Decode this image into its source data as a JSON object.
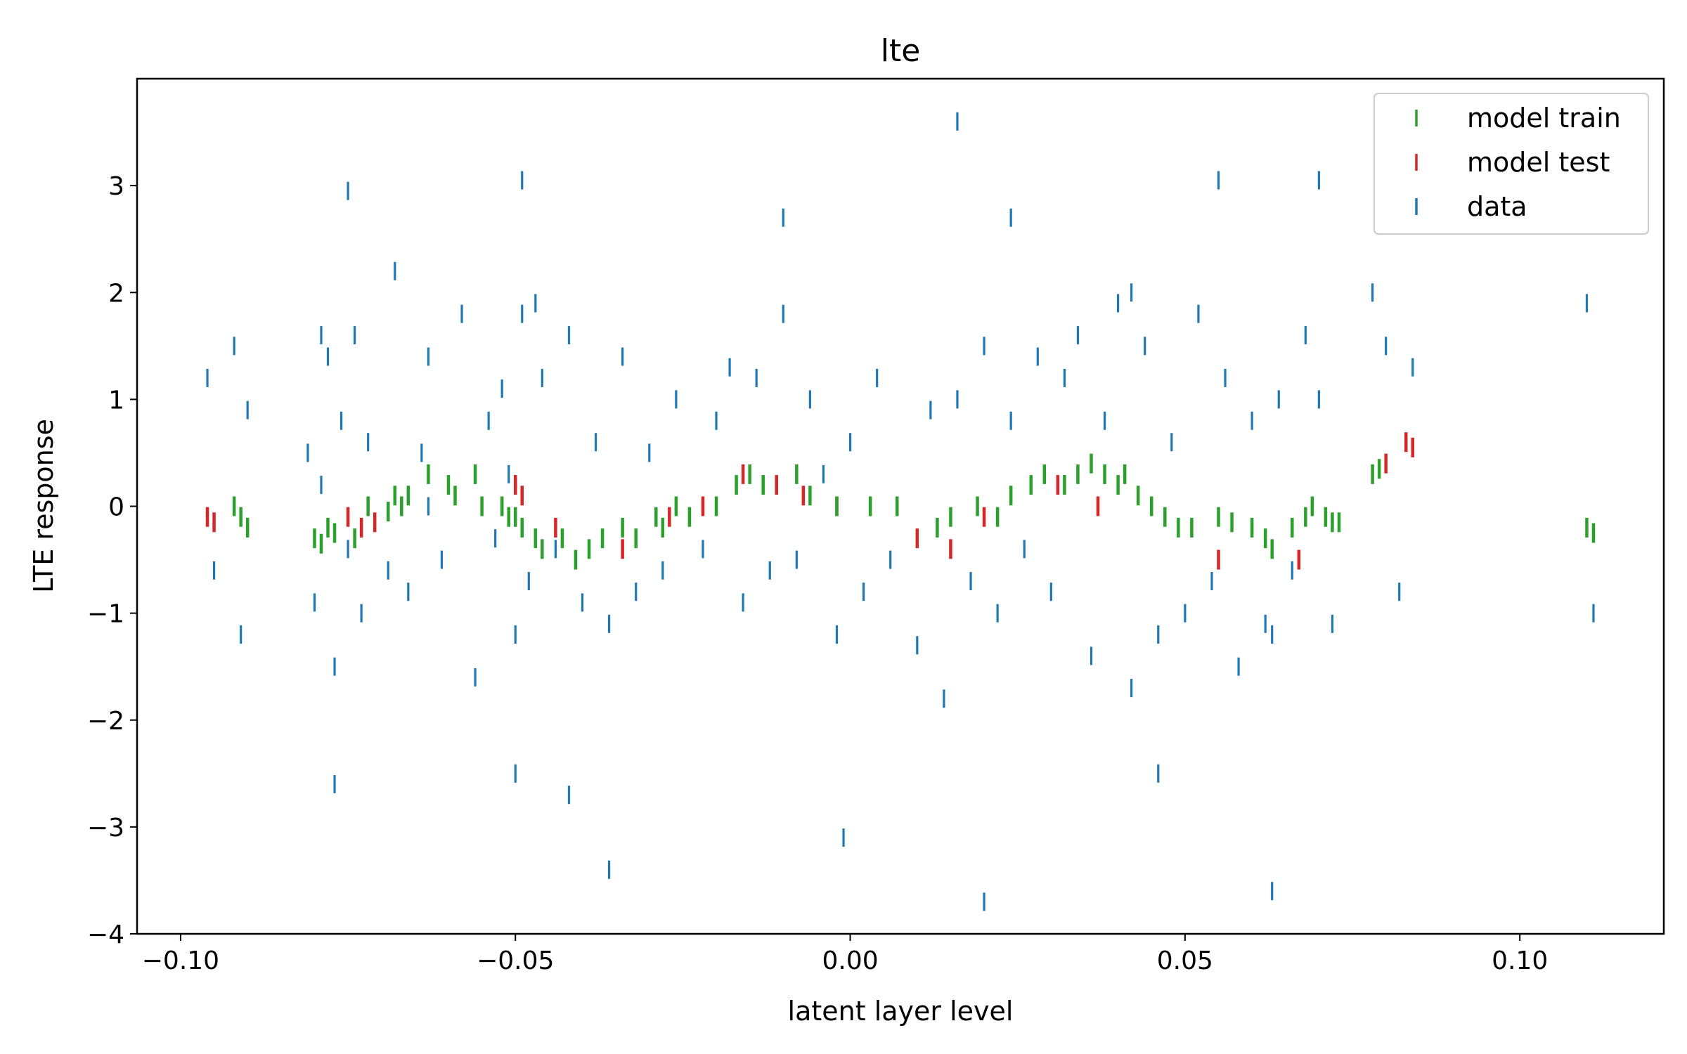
{
  "chart_data": {
    "type": "scatter",
    "title": "lte",
    "xlabel": "latent layer level",
    "ylabel": "LTE response",
    "xlim": [
      -0.1065,
      0.1215
    ],
    "ylim": [
      -4.0,
      4.0
    ],
    "xticks": [
      -0.1,
      -0.05,
      0.0,
      0.05,
      0.1
    ],
    "xtick_labels": [
      "−0.10",
      "−0.05",
      "0.00",
      "0.05",
      "0.10"
    ],
    "yticks": [
      -4,
      -3,
      -2,
      -1,
      0,
      1,
      2,
      3
    ],
    "ytick_labels": [
      "−4",
      "−3",
      "−2",
      "−1",
      "0",
      "1",
      "2",
      "3"
    ],
    "marker": "vertical-line",
    "grid": false,
    "legend_position": "top-right",
    "series": [
      {
        "name": "model train",
        "color": "#2ca02c",
        "x": [
          -0.092,
          -0.091,
          -0.09,
          -0.08,
          -0.079,
          -0.078,
          -0.077,
          -0.074,
          -0.072,
          -0.069,
          -0.068,
          -0.067,
          -0.066,
          -0.063,
          -0.06,
          -0.059,
          -0.056,
          -0.055,
          -0.052,
          -0.051,
          -0.05,
          -0.049,
          -0.047,
          -0.046,
          -0.043,
          -0.041,
          -0.039,
          -0.037,
          -0.034,
          -0.032,
          -0.029,
          -0.028,
          -0.026,
          -0.024,
          -0.02,
          -0.017,
          -0.015,
          -0.013,
          -0.008,
          -0.006,
          -0.002,
          0.003,
          0.007,
          0.013,
          0.015,
          0.019,
          0.022,
          0.024,
          0.027,
          0.029,
          0.032,
          0.034,
          0.036,
          0.038,
          0.04,
          0.041,
          0.043,
          0.045,
          0.047,
          0.049,
          0.051,
          0.055,
          0.057,
          0.06,
          0.062,
          0.063,
          0.066,
          0.068,
          0.069,
          0.071,
          0.072,
          0.073,
          0.078,
          0.079,
          0.11,
          0.111
        ],
        "y": [
          0.0,
          -0.1,
          -0.2,
          -0.3,
          -0.35,
          -0.2,
          -0.25,
          -0.3,
          0.0,
          -0.05,
          0.1,
          0.0,
          0.1,
          0.3,
          0.2,
          0.1,
          0.3,
          0.0,
          0.0,
          -0.1,
          -0.1,
          -0.2,
          -0.3,
          -0.4,
          -0.3,
          -0.5,
          -0.4,
          -0.3,
          -0.2,
          -0.3,
          -0.1,
          -0.2,
          0.0,
          -0.1,
          0.0,
          0.2,
          0.3,
          0.2,
          0.3,
          0.1,
          0.0,
          0.0,
          0.0,
          -0.2,
          -0.1,
          0.0,
          -0.1,
          0.1,
          0.2,
          0.3,
          0.2,
          0.3,
          0.4,
          0.3,
          0.2,
          0.3,
          0.1,
          0.0,
          -0.1,
          -0.2,
          -0.2,
          -0.1,
          -0.15,
          -0.2,
          -0.3,
          -0.4,
          -0.2,
          -0.1,
          0.0,
          -0.1,
          -0.15,
          -0.15,
          0.3,
          0.35,
          -0.2,
          -0.25
        ]
      },
      {
        "name": "model test",
        "color": "#d62728",
        "x": [
          -0.096,
          -0.095,
          -0.075,
          -0.073,
          -0.071,
          -0.05,
          -0.049,
          -0.044,
          -0.034,
          -0.027,
          -0.022,
          -0.016,
          -0.011,
          -0.007,
          -0.002,
          0.01,
          0.015,
          0.02,
          0.031,
          0.037,
          0.055,
          0.067,
          0.08,
          0.083,
          0.084
        ],
        "y": [
          -0.1,
          -0.15,
          -0.1,
          -0.2,
          -0.15,
          0.2,
          0.1,
          -0.2,
          -0.4,
          -0.1,
          0.0,
          0.3,
          0.2,
          0.1,
          0.0,
          -0.3,
          -0.4,
          -0.1,
          0.2,
          0.0,
          -0.5,
          -0.5,
          0.4,
          0.6,
          0.55
        ]
      },
      {
        "name": "data",
        "color": "#1f77b4",
        "x": [
          -0.096,
          -0.095,
          -0.092,
          -0.091,
          -0.09,
          -0.081,
          -0.08,
          -0.079,
          -0.078,
          -0.077,
          -0.076,
          -0.075,
          -0.074,
          -0.073,
          -0.072,
          -0.069,
          -0.068,
          -0.066,
          -0.063,
          -0.061,
          -0.058,
          -0.056,
          -0.054,
          -0.053,
          -0.052,
          -0.051,
          -0.05,
          -0.049,
          -0.048,
          -0.046,
          -0.044,
          -0.042,
          -0.04,
          -0.038,
          -0.036,
          -0.034,
          -0.032,
          -0.03,
          -0.028,
          -0.026,
          -0.022,
          -0.02,
          -0.018,
          -0.016,
          -0.014,
          -0.012,
          -0.01,
          -0.008,
          -0.006,
          -0.004,
          -0.002,
          0.0,
          0.002,
          0.004,
          0.006,
          0.01,
          0.012,
          0.014,
          0.016,
          0.018,
          0.02,
          0.022,
          0.024,
          0.026,
          0.028,
          0.03,
          0.032,
          0.034,
          0.036,
          0.038,
          0.04,
          0.042,
          0.044,
          0.046,
          0.048,
          0.05,
          0.052,
          0.054,
          0.056,
          0.058,
          0.06,
          0.062,
          0.064,
          0.066,
          0.068,
          0.07,
          0.072,
          0.078,
          0.08,
          0.082,
          0.084,
          0.11,
          0.111,
          -0.075,
          -0.05,
          -0.036,
          -0.049,
          0.016,
          0.02,
          -0.001,
          0.063,
          0.055,
          0.07,
          -0.079,
          -0.077,
          -0.063,
          -0.064,
          -0.042,
          -0.047,
          -0.01,
          0.024,
          0.042,
          0.046,
          0.063
        ],
        "y": [
          1.2,
          -0.6,
          1.5,
          -1.2,
          0.9,
          0.5,
          -0.9,
          0.2,
          1.4,
          -1.5,
          0.8,
          -0.4,
          1.6,
          -1.0,
          0.6,
          -0.6,
          2.2,
          -0.8,
          1.4,
          -0.5,
          1.8,
          -1.6,
          0.8,
          -0.3,
          1.1,
          0.3,
          -1.2,
          1.8,
          -0.7,
          1.2,
          -0.4,
          1.6,
          -0.9,
          0.6,
          -1.1,
          1.4,
          -0.8,
          0.5,
          -0.6,
          1.0,
          -0.4,
          0.8,
          1.3,
          -0.9,
          1.2,
          -0.6,
          1.8,
          -0.5,
          1.0,
          0.3,
          -1.2,
          0.6,
          -0.8,
          1.2,
          -0.5,
          -1.3,
          0.9,
          -1.8,
          1.0,
          -0.7,
          1.5,
          -1.0,
          0.8,
          -0.4,
          1.4,
          -0.8,
          1.2,
          1.6,
          -1.4,
          0.8,
          1.9,
          -1.7,
          1.5,
          -1.2,
          0.6,
          -1.0,
          1.8,
          -0.7,
          1.2,
          -1.5,
          0.8,
          -1.1,
          1.0,
          -0.6,
          1.6,
          1.0,
          -1.1,
          2.0,
          1.5,
          -0.8,
          1.3,
          1.9,
          -1.0,
          2.95,
          -2.5,
          -3.4,
          3.05,
          3.6,
          -3.7,
          -3.1,
          -3.6,
          3.05,
          3.05,
          1.6,
          -2.6,
          0.0,
          0.5,
          -2.7,
          1.9,
          2.7,
          2.7,
          2.0,
          -2.5,
          -1.2
        ]
      }
    ]
  }
}
